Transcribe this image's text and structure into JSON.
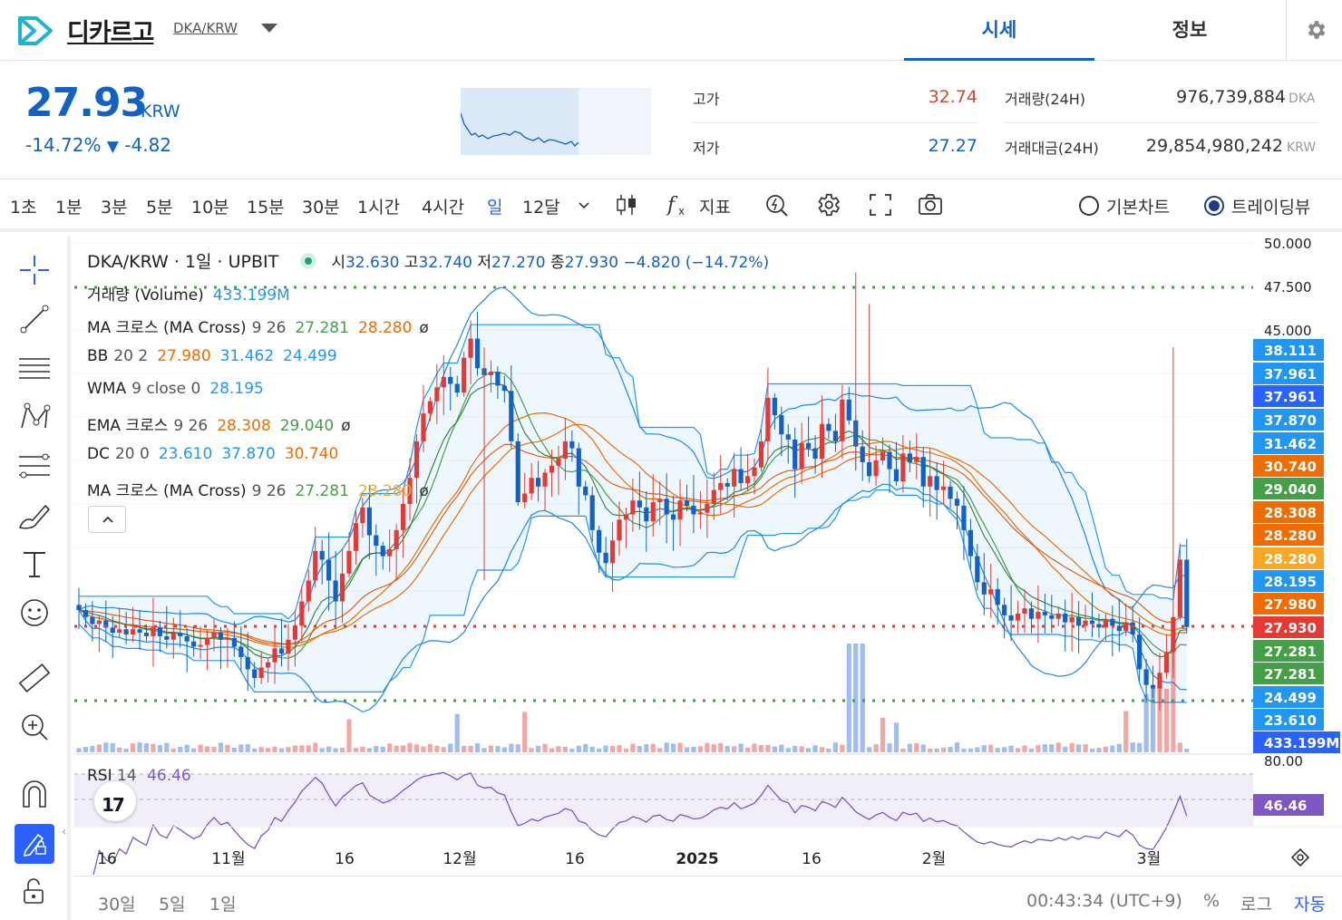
{
  "header": {
    "coin_name": "디카르고",
    "pair": "DKA/KRW",
    "tabs": [
      "시세",
      "정보"
    ]
  },
  "summary": {
    "price": "27.93",
    "unit": "KRW",
    "change_pct": "-14.72%",
    "change_arrow": "▼",
    "change_abs": "-4.82",
    "high_label": "고가",
    "high": "32.74",
    "low_label": "저가",
    "low": "27.27",
    "vol_label": "거래량(24H)",
    "vol": "976,739,884",
    "vol_unit": "DKA",
    "amt_label": "거래대금(24H)",
    "amt": "29,854,980,242",
    "amt_unit": "KRW"
  },
  "toolbar": {
    "timeframes": [
      "1초",
      "1분",
      "3분",
      "5분",
      "10분",
      "15분",
      "30분",
      "1시간",
      "4시간",
      "일",
      "12달"
    ],
    "active_timeframe": "일",
    "indicator_label": "지표",
    "basic_chart": "기본차트",
    "trading_view": "트레이딩뷰"
  },
  "legend": {
    "title": "DKA/KRW · 1일 · UPBIT",
    "o_label": "시",
    "o": "32.630",
    "h_label": "고",
    "h": "32.740",
    "l_label": "저",
    "l": "27.270",
    "c_label": "종",
    "c": "27.930",
    "chg": "−4.820 (−14.72%)",
    "rows": [
      {
        "name": "거래량 (Volume)",
        "params": "",
        "values": [
          {
            "v": "433.199M",
            "color": "#2196f3"
          }
        ],
        "suffix": ""
      },
      {
        "name": "MA 크로스 (MA Cross)",
        "params": "9 26",
        "values": [
          {
            "v": "27.281",
            "color": "#43a047"
          },
          {
            "v": "28.280",
            "color": "#ef6c00"
          }
        ],
        "suffix": "ø"
      },
      {
        "name": "BB",
        "params": "20 2",
        "values": [
          {
            "v": "27.980",
            "color": "#ef6c00"
          },
          {
            "v": "31.462",
            "color": "#2196f3"
          },
          {
            "v": "24.499",
            "color": "#2196f3"
          }
        ],
        "suffix": ""
      },
      {
        "name": "WMA",
        "params": "9 close 0",
        "values": [
          {
            "v": "28.195",
            "color": "#2196f3"
          }
        ],
        "suffix": ""
      },
      {
        "name": "EMA 크로스",
        "params": "9 26",
        "values": [
          {
            "v": "28.308",
            "color": "#ef6c00"
          },
          {
            "v": "29.040",
            "color": "#43a047"
          }
        ],
        "suffix": "ø"
      },
      {
        "name": "DC",
        "params": "20 0",
        "values": [
          {
            "v": "23.610",
            "color": "#2196f3"
          },
          {
            "v": "37.870",
            "color": "#2196f3"
          },
          {
            "v": "30.740",
            "color": "#ef6c00"
          }
        ],
        "suffix": ""
      },
      {
        "name": "MA 크로스 (MA Cross)",
        "params": "9 26",
        "values": [
          {
            "v": "27.281",
            "color": "#43a047"
          },
          {
            "v": "28.280",
            "color": "#f9a825"
          }
        ],
        "suffix": "ø"
      }
    ],
    "rsi_name": "RSI",
    "rsi_params": "14",
    "rsi_value": "46.46"
  },
  "chart_data": {
    "type": "candlestick",
    "y_ticks": [
      "50.000",
      "47.500",
      "45.000"
    ],
    "ylim": [
      22.5,
      50.0
    ],
    "rsi_ticks": [
      "80.00"
    ],
    "x_ticks": [
      "16",
      "11월",
      "16",
      "12월",
      "16",
      "2025",
      "16",
      "2월",
      "3월"
    ],
    "price_labels": [
      {
        "v": "38.111",
        "color": "#2196f3"
      },
      {
        "v": "37.961",
        "color": "#2196f3"
      },
      {
        "v": "37.961",
        "color": "#2962ff"
      },
      {
        "v": "37.870",
        "color": "#2196f3"
      },
      {
        "v": "31.462",
        "color": "#2196f3"
      },
      {
        "v": "30.740",
        "color": "#ef6c00"
      },
      {
        "v": "29.040",
        "color": "#43a047"
      },
      {
        "v": "28.308",
        "color": "#ef6c00"
      },
      {
        "v": "28.280",
        "color": "#ef6c00"
      },
      {
        "v": "28.280",
        "color": "#f9a825"
      },
      {
        "v": "28.195",
        "color": "#2196f3"
      },
      {
        "v": "27.980",
        "color": "#ef6c00"
      },
      {
        "v": "27.930",
        "color": "#e53935"
      },
      {
        "v": "27.281",
        "color": "#43a047"
      },
      {
        "v": "27.281",
        "color": "#43a047"
      },
      {
        "v": "24.499",
        "color": "#2196f3"
      },
      {
        "v": "23.610",
        "color": "#2196f3"
      },
      {
        "v": "433.199M",
        "color": "#2962ff"
      }
    ],
    "rsi_label": "46.46",
    "closes": [
      28.9,
      28.5,
      28.1,
      28.3,
      27.9,
      27.6,
      27.8,
      27.5,
      27.8,
      27.6,
      27.4,
      27.9,
      27.4,
      27.2,
      27.6,
      27.4,
      27.1,
      26.8,
      26.9,
      27.3,
      27.6,
      27.2,
      27.3,
      26.8,
      26.2,
      25.5,
      25.0,
      25.6,
      25.9,
      26.7,
      26.4,
      27.2,
      28.0,
      29.4,
      30.6,
      32.3,
      31.8,
      30.6,
      29.4,
      31.0,
      32.3,
      33.9,
      34.8,
      33.2,
      32.6,
      32.0,
      32.4,
      33.5,
      35.0,
      36.5,
      38.6,
      40.2,
      40.9,
      41.7,
      42.3,
      41.9,
      41.4,
      43.4,
      44.5,
      42.8,
      42.4,
      42.6,
      41.8,
      41.5,
      38.6,
      35.1,
      35.6,
      36.5,
      36.0,
      36.8,
      37.2,
      37.6,
      38.6,
      38.2,
      36.0,
      35.5,
      33.5,
      32.2,
      31.6,
      32.9,
      34.1,
      34.4,
      35.2,
      34.8,
      34.0,
      35.1,
      35.3,
      34.4,
      34.1,
      35.2,
      34.9,
      34.4,
      34.5,
      35.0,
      35.8,
      36.2,
      36.0,
      37.0,
      36.2,
      36.6,
      37.1,
      38.6,
      41.1,
      40.1,
      39.0,
      38.7,
      37.0,
      38.5,
      38.2,
      37.6,
      39.6,
      39.2,
      38.6,
      41.0,
      39.8,
      38.3,
      37.4,
      36.6,
      37.5,
      38.0,
      37.0,
      36.3,
      37.9,
      37.4,
      37.7,
      36.0,
      36.6,
      35.8,
      36.0,
      35.3,
      34.9,
      33.5,
      32.0,
      30.5,
      29.8,
      30.1,
      29.2,
      28.6,
      28.3,
      28.7,
      29.0,
      28.4,
      28.8,
      28.6,
      28.4,
      28.7,
      28.2,
      28.5,
      28.0,
      28.3,
      28.1,
      27.9,
      28.4,
      28.0,
      27.7,
      28.2,
      27.5,
      25.5,
      24.6,
      24.4,
      25.3,
      26.5,
      28.5,
      31.8,
      27.93
    ]
  },
  "bottom": {
    "ranges": [
      "30일",
      "5일",
      "1일"
    ],
    "time": "00:43:34 (UTC+9)",
    "pct": "%",
    "log": "로그",
    "auto": "자동"
  }
}
